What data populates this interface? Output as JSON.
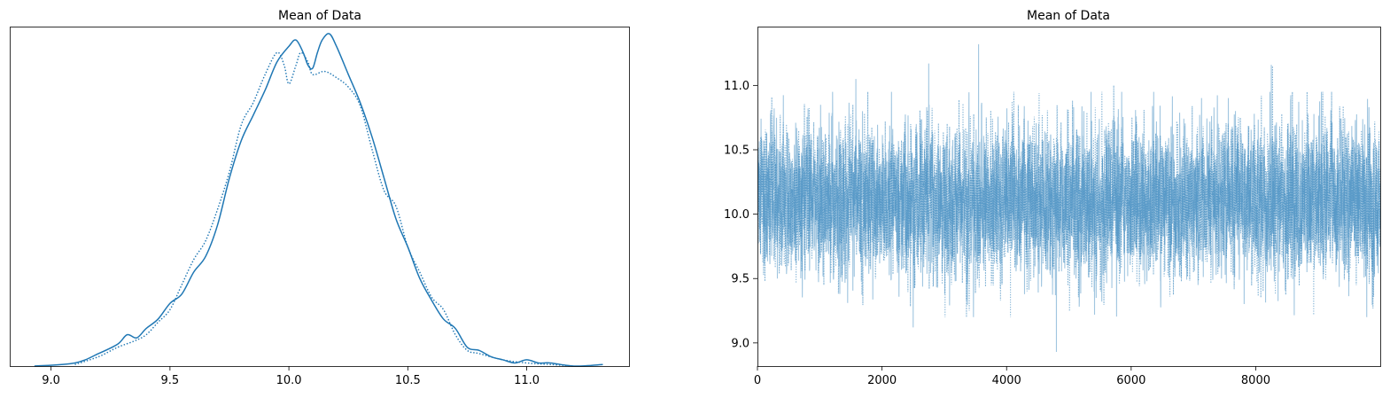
{
  "chart_data": [
    {
      "type": "line",
      "title": "Mean of Data",
      "xlabel": "",
      "ylabel": "",
      "xlim": [
        8.83,
        11.43
      ],
      "ylim": [
        0,
        1.08
      ],
      "x_ticks": [
        "9.0",
        "9.5",
        "10.0",
        "10.5",
        "11.0"
      ],
      "y_ticks": [],
      "grid": false,
      "color": "#1f77b4",
      "series": [
        {
          "style": "solid",
          "x": [
            8.93,
            9.1,
            9.2,
            9.28,
            9.32,
            9.36,
            9.4,
            9.45,
            9.5,
            9.55,
            9.6,
            9.65,
            9.7,
            9.75,
            9.8,
            9.85,
            9.9,
            9.95,
            10.0,
            10.03,
            10.06,
            10.08,
            10.1,
            10.12,
            10.14,
            10.17,
            10.2,
            10.25,
            10.3,
            10.35,
            10.4,
            10.45,
            10.5,
            10.55,
            10.6,
            10.65,
            10.7,
            10.75,
            10.8,
            10.85,
            10.9,
            10.95,
            11.0,
            11.05,
            11.1,
            11.2,
            11.32
          ],
          "y": [
            0.0,
            0.01,
            0.04,
            0.07,
            0.1,
            0.09,
            0.12,
            0.15,
            0.2,
            0.23,
            0.3,
            0.35,
            0.45,
            0.6,
            0.72,
            0.8,
            0.88,
            0.97,
            1.02,
            1.04,
            1.0,
            0.96,
            0.95,
            1.0,
            1.04,
            1.06,
            1.02,
            0.93,
            0.84,
            0.73,
            0.6,
            0.47,
            0.38,
            0.28,
            0.21,
            0.15,
            0.12,
            0.06,
            0.05,
            0.03,
            0.02,
            0.01,
            0.02,
            0.01,
            0.01,
            0.0,
            0.005
          ]
        },
        {
          "style": "dotted",
          "x": [
            9.1,
            9.2,
            9.28,
            9.35,
            9.4,
            9.45,
            9.5,
            9.55,
            9.6,
            9.65,
            9.7,
            9.75,
            9.8,
            9.85,
            9.9,
            9.95,
            9.98,
            10.0,
            10.03,
            10.05,
            10.08,
            10.1,
            10.15,
            10.2,
            10.25,
            10.3,
            10.35,
            10.4,
            10.45,
            10.5,
            10.55,
            10.6,
            10.65,
            10.7,
            10.75,
            10.8,
            10.9,
            11.0,
            11.1,
            11.2
          ],
          "y": [
            0.005,
            0.03,
            0.06,
            0.08,
            0.1,
            0.14,
            0.18,
            0.26,
            0.34,
            0.4,
            0.5,
            0.62,
            0.77,
            0.84,
            0.93,
            1.0,
            0.96,
            0.9,
            0.96,
            1.0,
            0.97,
            0.93,
            0.94,
            0.92,
            0.89,
            0.83,
            0.69,
            0.56,
            0.51,
            0.38,
            0.3,
            0.22,
            0.18,
            0.1,
            0.05,
            0.04,
            0.02,
            0.01,
            0.005,
            0.0
          ]
        }
      ]
    },
    {
      "type": "line",
      "title": "Mean of Data",
      "xlabel": "",
      "ylabel": "",
      "xlim": [
        0,
        9999
      ],
      "ylim": [
        8.82,
        11.45
      ],
      "x_ticks": [
        "0",
        "2000",
        "4000",
        "6000",
        "8000"
      ],
      "y_ticks": [
        "9.0",
        "9.5",
        "10.0",
        "10.5",
        "11.0"
      ],
      "grid": false,
      "color": "#1f77b4",
      "series": [
        {
          "style": "solid",
          "n_points": 10000,
          "mean": 10.1,
          "sd": 0.28,
          "extremes": [
            {
              "x": 3550,
              "y": 11.32
            },
            {
              "x": 4800,
              "y": 8.93
            },
            {
              "x": 2750,
              "y": 11.17
            },
            {
              "x": 8250,
              "y": 11.16
            },
            {
              "x": 1580,
              "y": 11.05
            },
            {
              "x": 2500,
              "y": 9.12
            }
          ]
        },
        {
          "style": "dotted",
          "n_points": 10000,
          "mean": 10.1,
          "sd": 0.28,
          "extremes": [
            {
              "x": 8270,
              "y": 11.15
            },
            {
              "x": 3400,
              "y": 9.25
            },
            {
              "x": 5720,
              "y": 11.0
            }
          ]
        }
      ]
    }
  ]
}
